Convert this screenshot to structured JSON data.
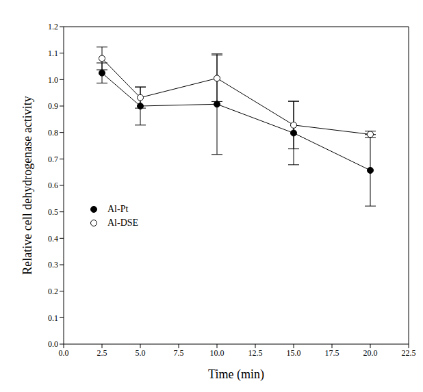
{
  "chart_data": {
    "type": "line",
    "x_label": "Time (min)",
    "y_label": "Relative cell dehydrogenase activity",
    "x": [
      2.5,
      5,
      10,
      15,
      20
    ],
    "series": [
      {
        "name": "Al-Pt",
        "color": "#000000",
        "marker": "filled_circle",
        "values": [
          1.025,
          0.9,
          0.907,
          0.798,
          0.657
        ],
        "errors": [
          0.038,
          0.072,
          0.19,
          0.12,
          0.135
        ]
      },
      {
        "name": "Al-DSE",
        "color": "#000000",
        "marker": "open_circle",
        "values": [
          1.08,
          0.932,
          1.005,
          0.828,
          0.793
        ],
        "errors": [
          0.043,
          0.04,
          0.088,
          0.09,
          0.012
        ]
      }
    ],
    "xlim": [
      0,
      22.5
    ],
    "xticks": [
      {
        "value": 0,
        "label": "0.0"
      },
      2.5,
      {
        "value": 5,
        "label": "5.0"
      },
      7.5,
      {
        "value": 10,
        "label": "10.0"
      },
      12.5,
      {
        "value": 15,
        "label": "15.0"
      },
      17.5,
      {
        "value": 20,
        "label": "20.0"
      },
      22.5
    ],
    "ylim": [
      0,
      1.2
    ],
    "yticks": [
      {
        "value": 0,
        "label": "0.0"
      },
      0.1,
      0.2,
      0.3,
      0.4,
      0.5,
      0.6,
      0.7,
      0.8,
      0.9,
      {
        "value": 1,
        "label": "1.0"
      },
      1.1,
      1.2
    ],
    "grid": false,
    "legend": "left"
  }
}
